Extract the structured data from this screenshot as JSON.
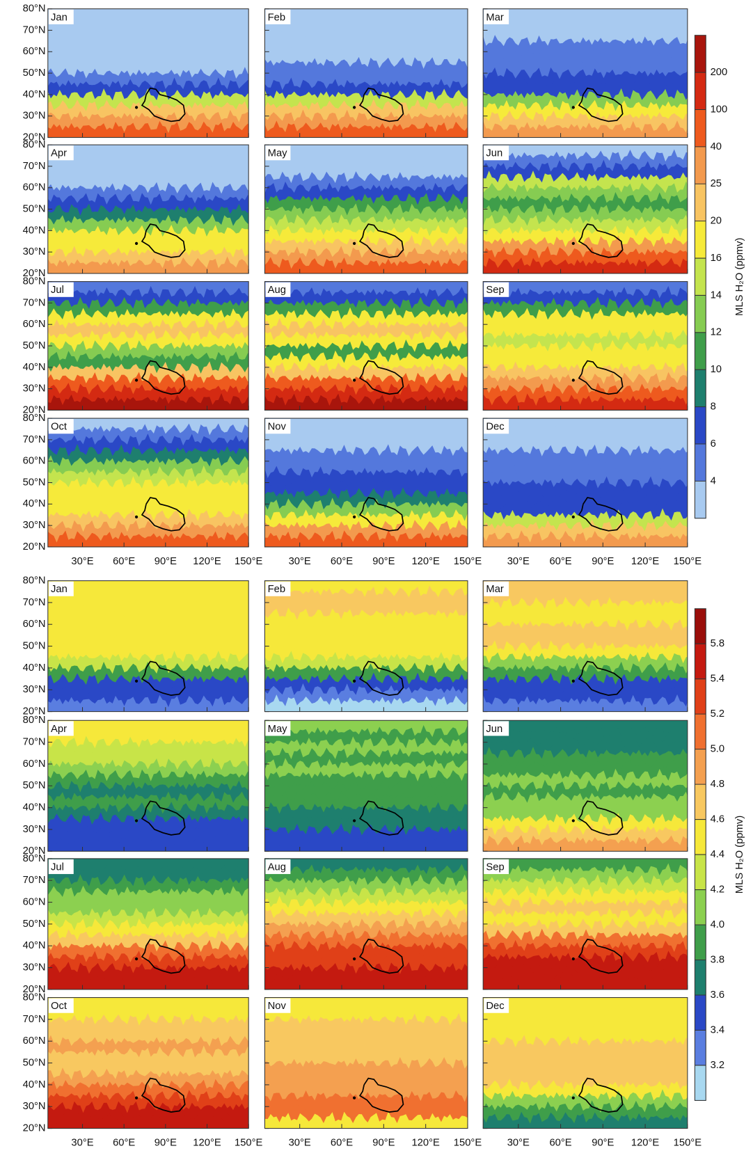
{
  "chart_data": [
    {
      "type": "contour",
      "months": [
        "Jan",
        "Feb",
        "Mar",
        "Apr",
        "May",
        "Jun",
        "Jul",
        "Aug",
        "Sep",
        "Oct",
        "Nov",
        "Dec"
      ],
      "xlim": [
        5,
        150
      ],
      "xticks": [
        {
          "value": 30,
          "label": "30°E"
        },
        {
          "value": 60,
          "label": "60°E"
        },
        {
          "value": 90,
          "label": "90°E"
        },
        {
          "value": 120,
          "label": "120°E"
        },
        {
          "value": 150,
          "label": "150°E"
        }
      ],
      "ylim": [
        20,
        80
      ],
      "yticks": [
        {
          "value": 80,
          "label": "80°N"
        },
        {
          "value": 70,
          "label": "70°N"
        },
        {
          "value": 60,
          "label": "60°N"
        },
        {
          "value": 50,
          "label": "50°N"
        },
        {
          "value": 40,
          "label": "40°N"
        },
        {
          "value": 30,
          "label": "30°N"
        },
        {
          "value": 20,
          "label": "20°N"
        }
      ],
      "colorbar": {
        "label": "MLS H₂O (ppmv)",
        "ticks": [
          200,
          100,
          40,
          25,
          20,
          16,
          14,
          12,
          10,
          8,
          6,
          4
        ],
        "colors": [
          "#a8150c",
          "#d42a12",
          "#ee5a1e",
          "#f39a4e",
          "#f8c462",
          "#f6ea3a",
          "#c4e44e",
          "#86cc52",
          "#3f9e4a",
          "#1e7f6e",
          "#2a48c6",
          "#5478dc",
          "#a8caf0"
        ]
      }
    },
    {
      "type": "contour",
      "months": [
        "Jan",
        "Feb",
        "Mar",
        "Apr",
        "May",
        "Jun",
        "Jul",
        "Aug",
        "Sep",
        "Oct",
        "Nov",
        "Dec"
      ],
      "xlim": [
        5,
        150
      ],
      "xticks": [
        {
          "value": 30,
          "label": "30°E"
        },
        {
          "value": 60,
          "label": "60°E"
        },
        {
          "value": 90,
          "label": "90°E"
        },
        {
          "value": 120,
          "label": "120°E"
        },
        {
          "value": 150,
          "label": "150°E"
        }
      ],
      "ylim": [
        20,
        80
      ],
      "yticks": [
        {
          "value": 80,
          "label": "80°N"
        },
        {
          "value": 70,
          "label": "70°N"
        },
        {
          "value": 60,
          "label": "60°N"
        },
        {
          "value": 50,
          "label": "50°N"
        },
        {
          "value": 40,
          "label": "40°N"
        },
        {
          "value": 30,
          "label": "30°N"
        },
        {
          "value": 20,
          "label": "20°N"
        }
      ],
      "colorbar": {
        "label": "MLS H₂O (ppmv)",
        "ticks": [
          5.8,
          5.4,
          5.2,
          {
            "value": 5,
            "label": "5.0"
          },
          4.8,
          4.6,
          4.4,
          4.2,
          {
            "value": 4,
            "label": "4.0"
          },
          3.8,
          3.6,
          3.4,
          3.2
        ],
        "colors": [
          "#9a0e0a",
          "#c41a10",
          "#e04018",
          "#f07030",
          "#f4a050",
          "#f8c860",
          "#f6e83a",
          "#c8e448",
          "#8cd050",
          "#3f9e4a",
          "#1e7f6e",
          "#2a48c6",
          "#5a7ee0",
          "#a8d8f0"
        ]
      }
    }
  ]
}
